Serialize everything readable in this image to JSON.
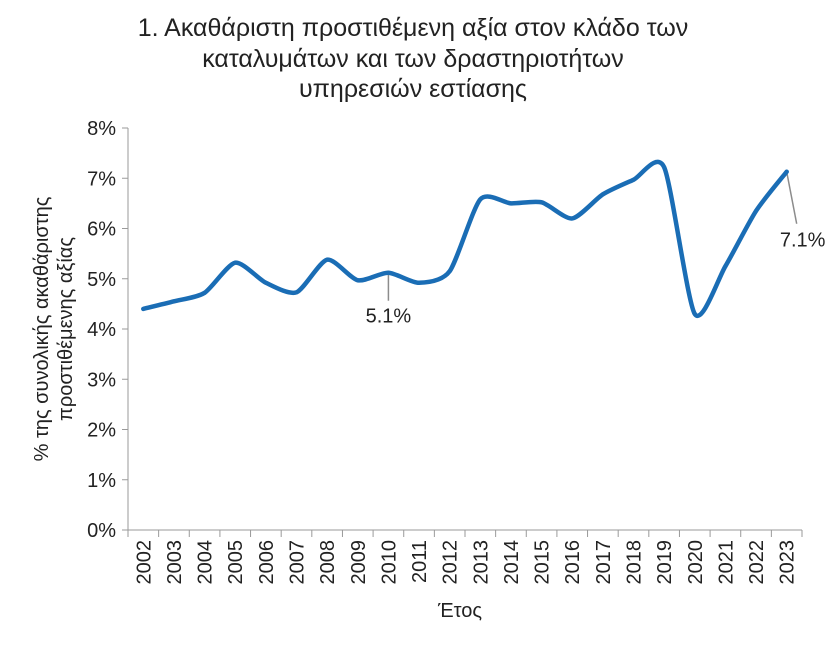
{
  "chart_data": {
    "type": "line",
    "title_lines": [
      "1. Ακαθάριστη προστιθέμενη αξία στον κλάδο των",
      "καταλυμάτων και των δραστηριοτήτων",
      "υπηρεσιών εστίασης"
    ],
    "xlabel": "Έτος",
    "ylabel_lines": [
      "% της συνολικής ακαθάριστης",
      "προστιθέμενης αξίας"
    ],
    "categories": [
      "2002",
      "2003",
      "2004",
      "2005",
      "2006",
      "2007",
      "2008",
      "2009",
      "2010",
      "2011",
      "2012",
      "2013",
      "2014",
      "2015",
      "2016",
      "2017",
      "2018",
      "2019",
      "2020",
      "2021",
      "2022",
      "2023"
    ],
    "series": [
      {
        "values": [
          4.4,
          4.55,
          4.72,
          5.32,
          4.92,
          4.73,
          5.38,
          4.97,
          5.12,
          4.92,
          5.15,
          6.58,
          6.5,
          6.52,
          6.2,
          6.68,
          6.97,
          7.22,
          4.3,
          5.25,
          6.35,
          7.13
        ]
      }
    ],
    "ylim": [
      0,
      8
    ],
    "yticks": [
      "0%",
      "1%",
      "2%",
      "3%",
      "4%",
      "5%",
      "6%",
      "7%",
      "8%"
    ],
    "grid": false,
    "line_color": "#1a6db5",
    "annotations": [
      {
        "category": "2010",
        "text": "5.1%"
      },
      {
        "category": "2023",
        "text": "7.1%"
      }
    ]
  }
}
